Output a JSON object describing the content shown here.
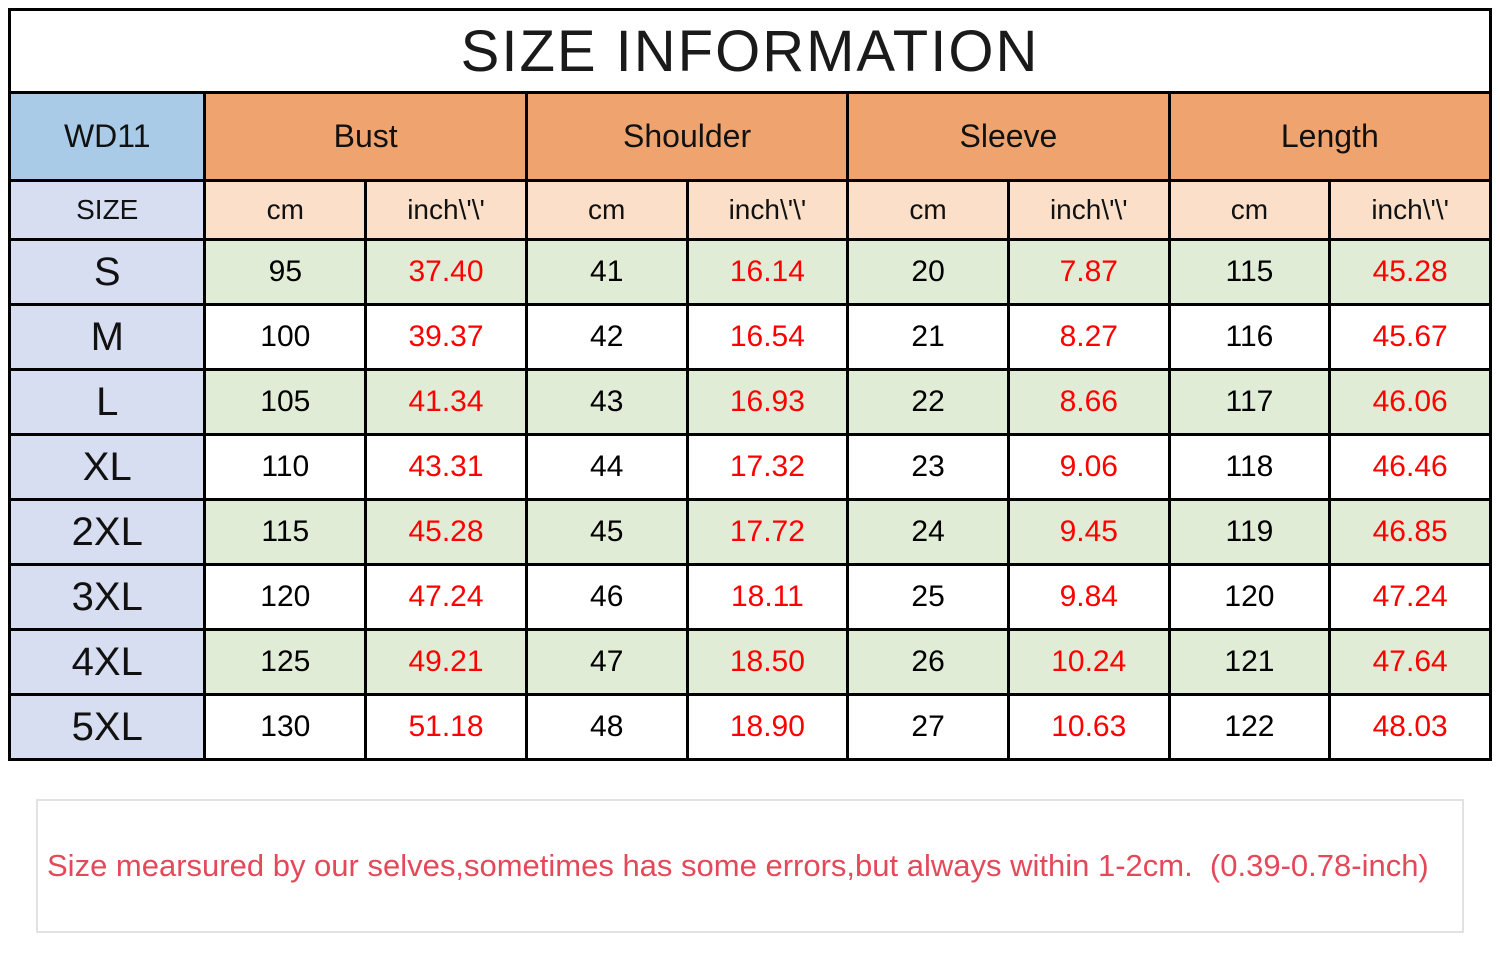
{
  "title": "SIZE INFORMATION",
  "table": {
    "product_code": "WD11",
    "size_label": "SIZE",
    "groups": [
      {
        "label": "Bust"
      },
      {
        "label": "Shoulder"
      },
      {
        "label": "Sleeve"
      },
      {
        "label": "Length"
      }
    ],
    "unit_cm": "cm",
    "unit_inch": "inch\\'\\'",
    "rows": [
      {
        "size": "S",
        "cells": [
          "95",
          "37.40",
          "41",
          "16.14",
          "20",
          "7.87",
          "115",
          "45.28"
        ]
      },
      {
        "size": "M",
        "cells": [
          "100",
          "39.37",
          "42",
          "16.54",
          "21",
          "8.27",
          "116",
          "45.67"
        ]
      },
      {
        "size": "L",
        "cells": [
          "105",
          "41.34",
          "43",
          "16.93",
          "22",
          "8.66",
          "117",
          "46.06"
        ]
      },
      {
        "size": "XL",
        "cells": [
          "110",
          "43.31",
          "44",
          "17.32",
          "23",
          "9.06",
          "118",
          "46.46"
        ]
      },
      {
        "size": "2XL",
        "cells": [
          "115",
          "45.28",
          "45",
          "17.72",
          "24",
          "9.45",
          "119",
          "46.85"
        ]
      },
      {
        "size": "3XL",
        "cells": [
          "120",
          "47.24",
          "46",
          "18.11",
          "25",
          "9.84",
          "120",
          "47.24"
        ]
      },
      {
        "size": "4XL",
        "cells": [
          "125",
          "49.21",
          "47",
          "18.50",
          "26",
          "10.24",
          "121",
          "47.64"
        ]
      },
      {
        "size": "5XL",
        "cells": [
          "130",
          "51.18",
          "48",
          "18.90",
          "27",
          "10.63",
          "122",
          "48.03"
        ]
      }
    ]
  },
  "note": "Size mearsured by our selves,sometimes has some errors,but always within 1-2cm.  (0.39-0.78-inch)",
  "colors": {
    "header_orange": "#efa46f",
    "header_peach": "#fbdfc9",
    "header_blue": "#a9cbe8",
    "size_column_lavender": "#d8def1",
    "row_green": "#e1ecd6",
    "row_white": "#ffffff",
    "inch_value_red": "#fe0000",
    "note_red": "#e4495a",
    "border_black": "#000000",
    "note_border_gray": "#e2e2e2"
  },
  "chart_data": {
    "type": "table",
    "title": "SIZE INFORMATION",
    "columns": [
      "SIZE",
      "Bust cm",
      "Bust inch",
      "Shoulder cm",
      "Shoulder inch",
      "Sleeve cm",
      "Sleeve inch",
      "Length cm",
      "Length inch"
    ],
    "rows": [
      [
        "S",
        95,
        37.4,
        41,
        16.14,
        20,
        7.87,
        115,
        45.28
      ],
      [
        "M",
        100,
        39.37,
        42,
        16.54,
        21,
        8.27,
        116,
        45.67
      ],
      [
        "L",
        105,
        41.34,
        43,
        16.93,
        22,
        8.66,
        117,
        46.06
      ],
      [
        "XL",
        110,
        43.31,
        44,
        17.32,
        23,
        9.06,
        118,
        46.46
      ],
      [
        "2XL",
        115,
        45.28,
        45,
        17.72,
        24,
        9.45,
        119,
        46.85
      ],
      [
        "3XL",
        120,
        47.24,
        46,
        18.11,
        25,
        9.84,
        120,
        47.24
      ],
      [
        "4XL",
        125,
        49.21,
        47,
        18.5,
        26,
        10.24,
        121,
        47.64
      ],
      [
        "5XL",
        130,
        51.18,
        48,
        18.9,
        27,
        10.63,
        122,
        48.03
      ]
    ],
    "annotations": [
      "Size mearsured by our selves,sometimes has some errors,but always within 1-2cm.  (0.39-0.78-inch)"
    ]
  }
}
